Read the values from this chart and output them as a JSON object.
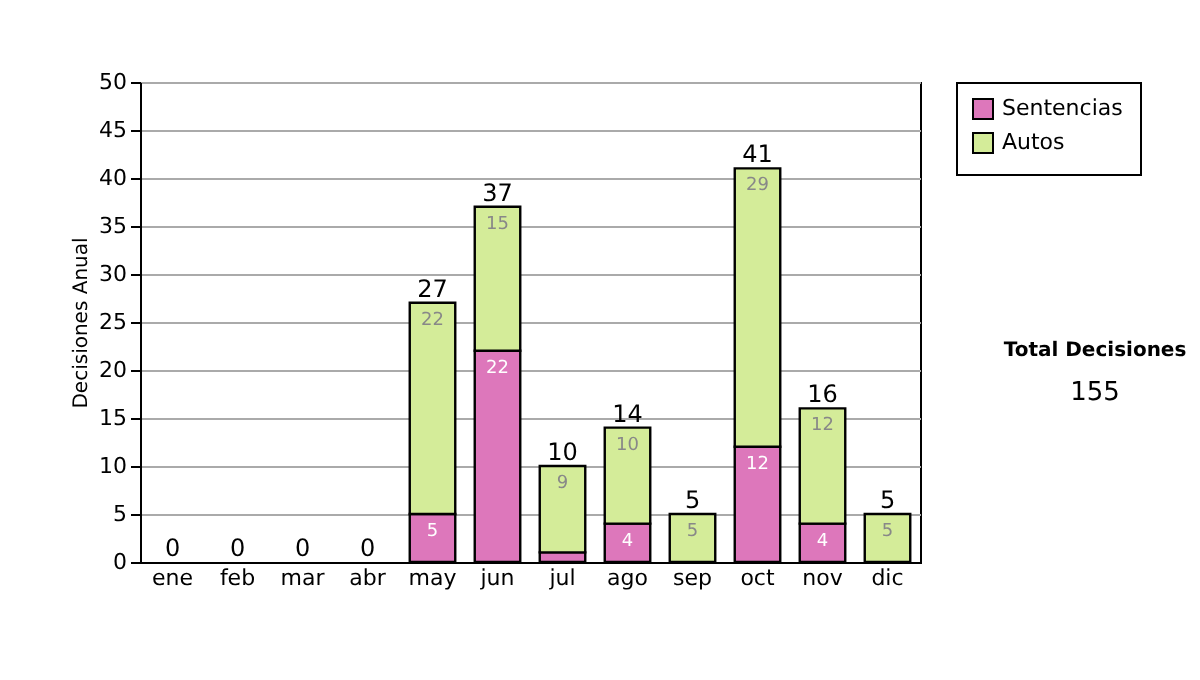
{
  "chart_data": {
    "type": "bar",
    "stacked": true,
    "ylabel": "Decisiones Anual",
    "categories": [
      "ene",
      "feb",
      "mar",
      "abr",
      "may",
      "jun",
      "jul",
      "ago",
      "sep",
      "oct",
      "nov",
      "dic"
    ],
    "series": [
      {
        "name": "Sentencias",
        "color": "#dd77bb",
        "values": [
          0,
          0,
          0,
          0,
          5,
          22,
          1,
          4,
          0,
          12,
          4,
          0
        ],
        "value_labels": [
          null,
          null,
          null,
          null,
          "5",
          "22",
          null,
          "4",
          null,
          "12",
          "4",
          null
        ]
      },
      {
        "name": "Autos",
        "color": "#d4ec99",
        "values": [
          0,
          0,
          0,
          0,
          22,
          15,
          9,
          10,
          5,
          29,
          12,
          5
        ],
        "value_labels": [
          null,
          null,
          null,
          null,
          "22",
          "15",
          "9",
          "10",
          "5",
          "29",
          "12",
          "5"
        ]
      }
    ],
    "totals": [
      "0",
      "0",
      "0",
      "0",
      "27",
      "37",
      "10",
      "14",
      "5",
      "41",
      "16",
      "5"
    ],
    "ylim": [
      0,
      50
    ],
    "yticks": [
      0,
      5,
      10,
      15,
      20,
      25,
      30,
      35,
      40,
      45,
      50
    ],
    "grid": "y",
    "legend": "right",
    "annotations": [
      "Total Decisiones",
      "155"
    ]
  }
}
